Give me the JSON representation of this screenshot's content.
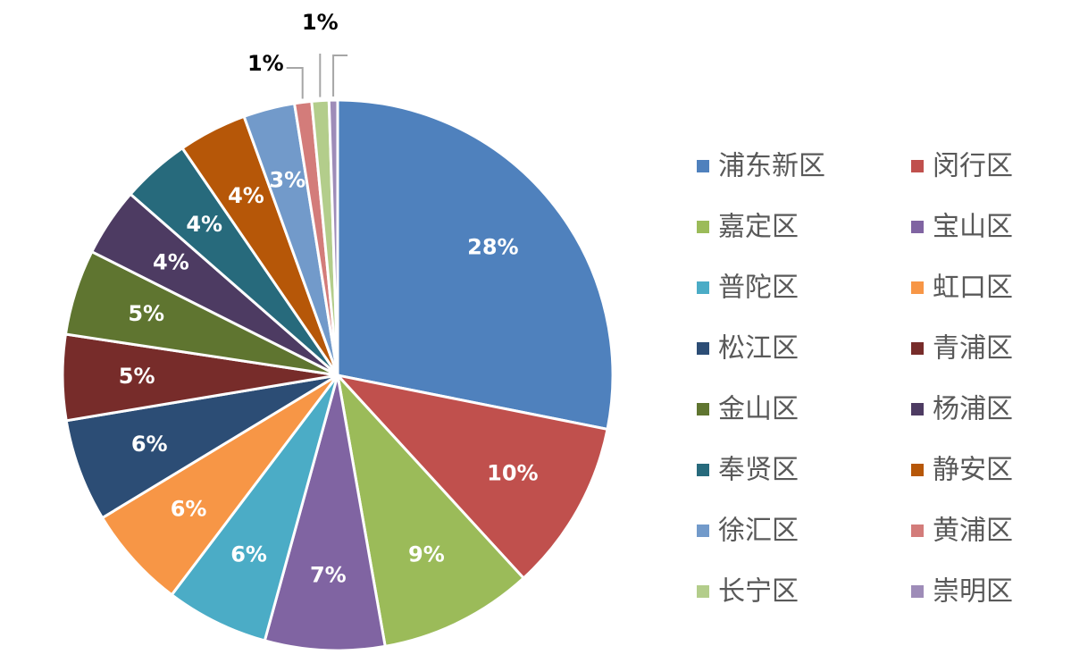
{
  "chart_data": {
    "type": "pie",
    "categories": [
      "浦东新区",
      "闵行区",
      "嘉定区",
      "宝山区",
      "普陀区",
      "虹口区",
      "松江区",
      "青浦区",
      "金山区",
      "杨浦区",
      "奉贤区",
      "静安区",
      "徐汇区",
      "黄浦区",
      "长宁区",
      "崇明区"
    ],
    "values": [
      28,
      10,
      9,
      7,
      6,
      6,
      6,
      5,
      5,
      4,
      4,
      4,
      3,
      1,
      1,
      0.5
    ],
    "value_labels": [
      "28%",
      "10%",
      "9%",
      "7%",
      "6%",
      "6%",
      "6%",
      "5%",
      "5%",
      "4%",
      "4%",
      "4%",
      "3%",
      "1%",
      "1%",
      null
    ],
    "colors": [
      "#4f81bd",
      "#c0504d",
      "#9bbb59",
      "#8064a2",
      "#4bacc6",
      "#f79646",
      "#2c4d75",
      "#772c2a",
      "#5f7530",
      "#4d3b62",
      "#276a7c",
      "#b65708",
      "#729aca",
      "#d37c7a",
      "#b3cd8b",
      "#9e8cb8"
    ],
    "legend": "right"
  }
}
